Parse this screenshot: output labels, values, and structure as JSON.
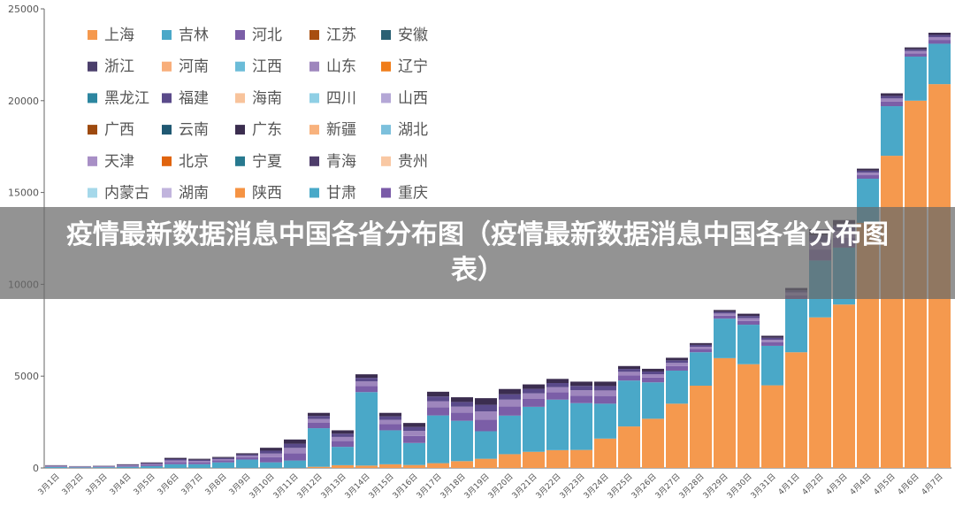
{
  "chart_data": {
    "type": "stacked-bar",
    "banner_title": "疫情最新数据消息中国各省分布图（疫情最新数据消息中国各省分布图表）",
    "categories": [
      "3月1日",
      "3月2日",
      "3月3日",
      "3月4日",
      "3月5日",
      "3月6日",
      "3月7日",
      "3月8日",
      "3月9日",
      "3月10日",
      "3月11日",
      "3月12日",
      "3月13日",
      "3月14日",
      "3月15日",
      "3月16日",
      "3月17日",
      "3月18日",
      "3月19日",
      "3月20日",
      "3月21日",
      "3月22日",
      "3月23日",
      "3月24日",
      "3月25日",
      "3月26日",
      "3月27日",
      "3月28日",
      "3月29日",
      "3月30日",
      "3月31日",
      "4月1日",
      "4月2日",
      "4月3日",
      "4月4日",
      "4月5日",
      "4月6日",
      "4月7日"
    ],
    "ylim": [
      0,
      25000
    ],
    "yticks": [
      0,
      5000,
      10000,
      15000,
      20000,
      25000
    ],
    "series": [
      {
        "name": "上海",
        "color": "#f5994e",
        "values": [
          2,
          2,
          3,
          5,
          2,
          3,
          4,
          3,
          5,
          5,
          5,
          64,
          150,
          130,
          200,
          160,
          260,
          370,
          500,
          750,
          880,
          970,
          980,
          1600,
          2260,
          2680,
          3500,
          4480,
          5980,
          5650,
          4500,
          6300,
          8200,
          8900,
          13350,
          17000,
          20000,
          20900
        ]
      },
      {
        "name": "吉林",
        "color": "#4aa8c8",
        "values": [
          50,
          30,
          40,
          60,
          100,
          200,
          200,
          300,
          450,
          300,
          400,
          2100,
          1000,
          4000,
          1850,
          1200,
          2600,
          2200,
          1500,
          2100,
          2450,
          2750,
          2550,
          1900,
          2500,
          1980,
          1800,
          1820,
          2150,
          2150,
          2150,
          2900,
          3100,
          3100,
          2400,
          2700,
          2400,
          2200
        ]
      },
      {
        "name": "河北",
        "color": "#7b5ea7",
        "values": [
          34,
          24,
          27,
          47,
          69,
          121,
          104,
          104,
          121,
          278,
          401,
          293,
          315,
          340,
          333,
          382,
          452,
          448,
          630,
          508,
          427,
          396,
          410,
          420,
          277,
          259,
          245,
          175,
          165,
          210,
          193,
          210,
          595,
          525,
          193,
          245,
          175,
          210
        ]
      },
      {
        "name": "江苏",
        "color": "#a84e0f",
        "values": [
          0,
          0,
          0,
          0,
          0,
          0,
          0,
          0,
          0,
          0,
          0,
          0,
          0,
          0,
          0,
          0,
          0,
          0,
          0,
          0,
          0,
          0,
          0,
          0,
          0,
          0,
          0,
          0,
          0,
          0,
          0,
          0,
          0,
          0,
          0,
          0,
          0,
          0
        ]
      },
      {
        "name": "安徽",
        "color": "#2a6073",
        "values": [
          0,
          0,
          0,
          0,
          0,
          0,
          0,
          0,
          0,
          0,
          0,
          0,
          0,
          0,
          0,
          0,
          0,
          0,
          0,
          0,
          0,
          0,
          0,
          0,
          0,
          0,
          0,
          0,
          0,
          0,
          0,
          0,
          0,
          0,
          0,
          0,
          0,
          0
        ]
      },
      {
        "name": "浙江",
        "color": "#4b3f6b",
        "values": [
          0,
          0,
          0,
          0,
          0,
          0,
          0,
          0,
          0,
          0,
          0,
          0,
          0,
          0,
          0,
          0,
          0,
          0,
          0,
          0,
          0,
          0,
          0,
          0,
          0,
          0,
          0,
          0,
          0,
          0,
          0,
          0,
          0,
          0,
          0,
          0,
          0,
          0
        ]
      },
      {
        "name": "河南",
        "color": "#f8ae7a",
        "values": [
          0,
          0,
          0,
          0,
          0,
          0,
          0,
          0,
          0,
          0,
          0,
          0,
          0,
          0,
          0,
          0,
          0,
          0,
          0,
          0,
          0,
          0,
          0,
          0,
          0,
          0,
          0,
          0,
          0,
          0,
          0,
          0,
          0,
          0,
          0,
          0,
          0,
          0
        ]
      },
      {
        "name": "江西",
        "color": "#6bbcd8",
        "values": [
          0,
          0,
          0,
          0,
          0,
          0,
          0,
          0,
          0,
          0,
          0,
          0,
          0,
          0,
          0,
          0,
          0,
          0,
          0,
          0,
          0,
          0,
          0,
          0,
          0,
          0,
          0,
          0,
          0,
          0,
          0,
          0,
          0,
          0,
          0,
          0,
          0,
          0
        ]
      },
      {
        "name": "山东",
        "color": "#9e86bd",
        "values": [
          25,
          17,
          19,
          34,
          50,
          87,
          74,
          74,
          86,
          199,
          286,
          209,
          225,
          243,
          238,
          273,
          323,
          320,
          450,
          363,
          305,
          283,
          293,
          300,
          198,
          185,
          175,
          125,
          118,
          150,
          138,
          150,
          425,
          375,
          138,
          175,
          125,
          150
        ]
      },
      {
        "name": "辽宁",
        "color": "#f07d1a",
        "values": [
          0,
          0,
          0,
          0,
          0,
          0,
          0,
          0,
          0,
          0,
          0,
          0,
          0,
          0,
          0,
          0,
          0,
          0,
          0,
          0,
          0,
          0,
          0,
          0,
          0,
          0,
          0,
          0,
          0,
          0,
          0,
          0,
          0,
          0,
          0,
          0,
          0,
          0
        ]
      },
      {
        "name": "黑龙江",
        "color": "#2c86a0",
        "values": [
          0,
          0,
          0,
          0,
          0,
          0,
          0,
          0,
          0,
          0,
          0,
          0,
          0,
          0,
          0,
          0,
          0,
          0,
          0,
          0,
          0,
          0,
          0,
          0,
          0,
          0,
          0,
          0,
          0,
          0,
          0,
          0,
          0,
          0,
          0,
          0,
          0,
          0
        ]
      },
      {
        "name": "福建",
        "color": "#5a4a8a",
        "values": [
          19,
          13,
          16,
          27,
          39,
          70,
          59,
          60,
          69,
          159,
          229,
          167,
          180,
          193,
          189,
          217,
          257,
          256,
          360,
          289,
          244,
          225,
          233,
          240,
          157,
          148,
          140,
          100,
          93,
          120,
          109,
          120,
          340,
          300,
          109,
          140,
          100,
          120
        ]
      },
      {
        "name": "海南",
        "color": "#f8c39b",
        "values": [
          0,
          0,
          0,
          0,
          0,
          0,
          0,
          0,
          0,
          0,
          0,
          0,
          0,
          0,
          0,
          0,
          0,
          0,
          0,
          0,
          0,
          0,
          0,
          0,
          0,
          0,
          0,
          0,
          0,
          0,
          0,
          0,
          0,
          0,
          0,
          0,
          0,
          0
        ]
      },
      {
        "name": "四川",
        "color": "#8fcfe5",
        "values": [
          0,
          0,
          0,
          0,
          0,
          0,
          0,
          0,
          0,
          0,
          0,
          0,
          0,
          0,
          0,
          0,
          0,
          0,
          0,
          0,
          0,
          0,
          0,
          0,
          0,
          0,
          0,
          0,
          0,
          0,
          0,
          0,
          0,
          0,
          0,
          0,
          0,
          0
        ]
      },
      {
        "name": "山西",
        "color": "#b4a7d6",
        "values": [
          0,
          0,
          0,
          0,
          0,
          0,
          0,
          0,
          0,
          0,
          0,
          0,
          0,
          0,
          0,
          0,
          0,
          0,
          0,
          0,
          0,
          0,
          0,
          0,
          0,
          0,
          0,
          0,
          0,
          0,
          0,
          0,
          0,
          0,
          0,
          0,
          0,
          0
        ]
      },
      {
        "name": "广西",
        "color": "#9e4a0f",
        "values": [
          0,
          0,
          0,
          0,
          0,
          0,
          0,
          0,
          0,
          0,
          0,
          0,
          0,
          0,
          0,
          0,
          0,
          0,
          0,
          0,
          0,
          0,
          0,
          0,
          0,
          0,
          0,
          0,
          0,
          0,
          0,
          0,
          0,
          0,
          0,
          0,
          0,
          0
        ]
      },
      {
        "name": "云南",
        "color": "#1f5872",
        "values": [
          0,
          0,
          0,
          0,
          0,
          0,
          0,
          0,
          0,
          0,
          0,
          0,
          0,
          0,
          0,
          0,
          0,
          0,
          0,
          0,
          0,
          0,
          0,
          0,
          0,
          0,
          0,
          0,
          0,
          0,
          0,
          0,
          0,
          0,
          0,
          0,
          0,
          0
        ]
      },
      {
        "name": "广东",
        "color": "#3b2d4f",
        "values": [
          20,
          14,
          15,
          27,
          40,
          69,
          59,
          59,
          69,
          159,
          229,
          167,
          180,
          194,
          190,
          218,
          258,
          256,
          360,
          290,
          244,
          226,
          234,
          240,
          158,
          148,
          140,
          100,
          94,
          120,
          110,
          120,
          340,
          300,
          110,
          140,
          100,
          120
        ]
      },
      {
        "name": "新疆",
        "color": "#f8b27d",
        "values": [
          0,
          0,
          0,
          0,
          0,
          0,
          0,
          0,
          0,
          0,
          0,
          0,
          0,
          0,
          0,
          0,
          0,
          0,
          0,
          0,
          0,
          0,
          0,
          0,
          0,
          0,
          0,
          0,
          0,
          0,
          0,
          0,
          0,
          0,
          0,
          0,
          0,
          0
        ]
      },
      {
        "name": "湖北",
        "color": "#7cc0dc",
        "values": [
          0,
          0,
          0,
          0,
          0,
          0,
          0,
          0,
          0,
          0,
          0,
          0,
          0,
          0,
          0,
          0,
          0,
          0,
          0,
          0,
          0,
          0,
          0,
          0,
          0,
          0,
          0,
          0,
          0,
          0,
          0,
          0,
          0,
          0,
          0,
          0,
          0,
          0
        ]
      },
      {
        "name": "天津",
        "color": "#a88fc6",
        "values": [
          0,
          0,
          0,
          0,
          0,
          0,
          0,
          0,
          0,
          0,
          0,
          0,
          0,
          0,
          0,
          0,
          0,
          0,
          0,
          0,
          0,
          0,
          0,
          0,
          0,
          0,
          0,
          0,
          0,
          0,
          0,
          0,
          0,
          0,
          0,
          0,
          0,
          0
        ]
      },
      {
        "name": "北京",
        "color": "#e0640e",
        "values": [
          0,
          0,
          0,
          0,
          0,
          0,
          0,
          0,
          0,
          0,
          0,
          0,
          0,
          0,
          0,
          0,
          0,
          0,
          0,
          0,
          0,
          0,
          0,
          0,
          0,
          0,
          0,
          0,
          0,
          0,
          0,
          0,
          0,
          0,
          0,
          0,
          0,
          0
        ]
      },
      {
        "name": "宁夏",
        "color": "#27798f",
        "values": [
          0,
          0,
          0,
          0,
          0,
          0,
          0,
          0,
          0,
          0,
          0,
          0,
          0,
          0,
          0,
          0,
          0,
          0,
          0,
          0,
          0,
          0,
          0,
          0,
          0,
          0,
          0,
          0,
          0,
          0,
          0,
          0,
          0,
          0,
          0,
          0,
          0,
          0
        ]
      },
      {
        "name": "青海",
        "color": "#4e3d6b",
        "values": [
          0,
          0,
          0,
          0,
          0,
          0,
          0,
          0,
          0,
          0,
          0,
          0,
          0,
          0,
          0,
          0,
          0,
          0,
          0,
          0,
          0,
          0,
          0,
          0,
          0,
          0,
          0,
          0,
          0,
          0,
          0,
          0,
          0,
          0,
          0,
          0,
          0,
          0
        ]
      },
      {
        "name": "贵州",
        "color": "#f9c8a3",
        "values": [
          0,
          0,
          0,
          0,
          0,
          0,
          0,
          0,
          0,
          0,
          0,
          0,
          0,
          0,
          0,
          0,
          0,
          0,
          0,
          0,
          0,
          0,
          0,
          0,
          0,
          0,
          0,
          0,
          0,
          0,
          0,
          0,
          0,
          0,
          0,
          0,
          0,
          0
        ]
      },
      {
        "name": "内蒙古",
        "color": "#a5d8ea",
        "values": [
          0,
          0,
          0,
          0,
          0,
          0,
          0,
          0,
          0,
          0,
          0,
          0,
          0,
          0,
          0,
          0,
          0,
          0,
          0,
          0,
          0,
          0,
          0,
          0,
          0,
          0,
          0,
          0,
          0,
          0,
          0,
          0,
          0,
          0,
          0,
          0,
          0,
          0
        ]
      },
      {
        "name": "湖南",
        "color": "#c1b4dd",
        "values": [
          0,
          0,
          0,
          0,
          0,
          0,
          0,
          0,
          0,
          0,
          0,
          0,
          0,
          0,
          0,
          0,
          0,
          0,
          0,
          0,
          0,
          0,
          0,
          0,
          0,
          0,
          0,
          0,
          0,
          0,
          0,
          0,
          0,
          0,
          0,
          0,
          0,
          0
        ]
      },
      {
        "name": "陕西",
        "color": "#f59343",
        "values": [
          0,
          0,
          0,
          0,
          0,
          0,
          0,
          0,
          0,
          0,
          0,
          0,
          0,
          0,
          0,
          0,
          0,
          0,
          0,
          0,
          0,
          0,
          0,
          0,
          0,
          0,
          0,
          0,
          0,
          0,
          0,
          0,
          0,
          0,
          0,
          0,
          0,
          0
        ]
      },
      {
        "name": "甘肃",
        "color": "#48a9c8",
        "values": [
          0,
          0,
          0,
          0,
          0,
          0,
          0,
          0,
          0,
          0,
          0,
          0,
          0,
          0,
          0,
          0,
          0,
          0,
          0,
          0,
          0,
          0,
          0,
          0,
          0,
          0,
          0,
          0,
          0,
          0,
          0,
          0,
          0,
          0,
          0,
          0,
          0,
          0
        ]
      },
      {
        "name": "重庆",
        "color": "#7a5ba8",
        "values": [
          0,
          0,
          0,
          0,
          0,
          0,
          0,
          0,
          0,
          0,
          0,
          0,
          0,
          0,
          0,
          0,
          0,
          0,
          0,
          0,
          0,
          0,
          0,
          0,
          0,
          0,
          0,
          0,
          0,
          0,
          0,
          0,
          0,
          0,
          0,
          0,
          0,
          0
        ]
      }
    ]
  }
}
